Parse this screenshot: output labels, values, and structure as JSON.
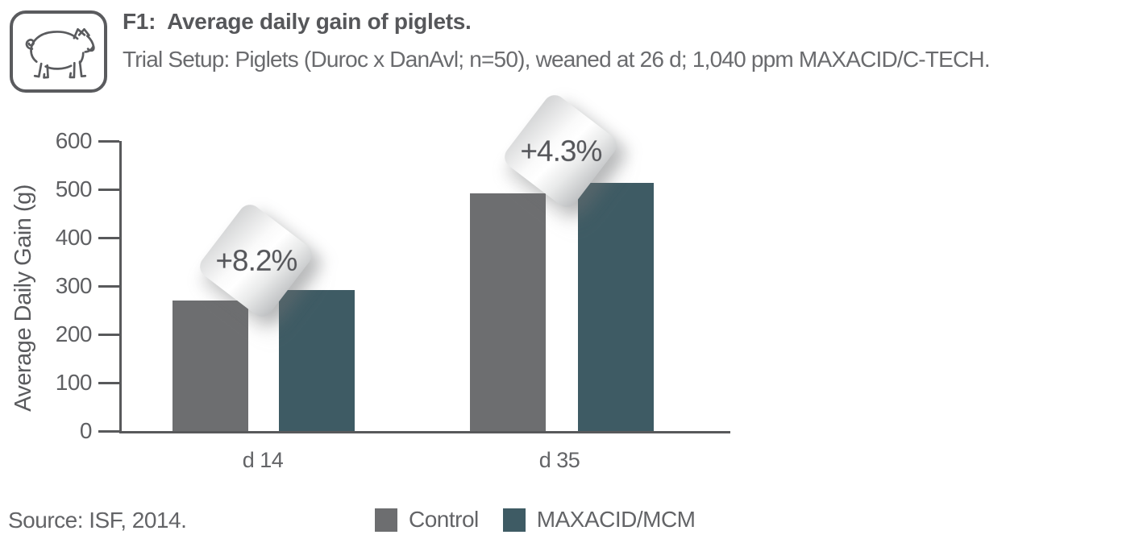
{
  "header": {
    "figure_label": "F1:",
    "title": "Average daily gain of piglets.",
    "subtitle": "Trial Setup: Piglets (Duroc x DanAvl; n=50), weaned at 26 d; 1,040 ppm MAXACID/C-TECH.",
    "icon": "pig-icon"
  },
  "chart_data": {
    "type": "bar",
    "title": "Average daily gain of piglets",
    "categories": [
      "d 14",
      "d 35"
    ],
    "series": [
      {
        "name": "Control",
        "values": [
          270,
          492
        ],
        "color": "#6d6e70"
      },
      {
        "name": "MAXACID/MCM",
        "values": [
          292,
          513
        ],
        "color": "#3e5b64"
      }
    ],
    "annotations": [
      {
        "label": "+8.2%",
        "category": "d 14"
      },
      {
        "label": "+4.3%",
        "category": "d 35"
      }
    ],
    "ylabel": "Average Daily Gain (g)",
    "xlabel": "",
    "ylim": [
      0,
      600
    ],
    "yticks": [
      0,
      100,
      200,
      300,
      400,
      500,
      600
    ],
    "grid": false,
    "legend_position": "bottom"
  },
  "footer": {
    "source": "Source: ISF, 2014."
  },
  "colors": {
    "control": "#6d6e70",
    "treatment": "#3e5b64",
    "axis": "#58595b",
    "text_dark": "#56575a",
    "text_medium": "#6a6b6e",
    "badge_text": "#55565a"
  }
}
